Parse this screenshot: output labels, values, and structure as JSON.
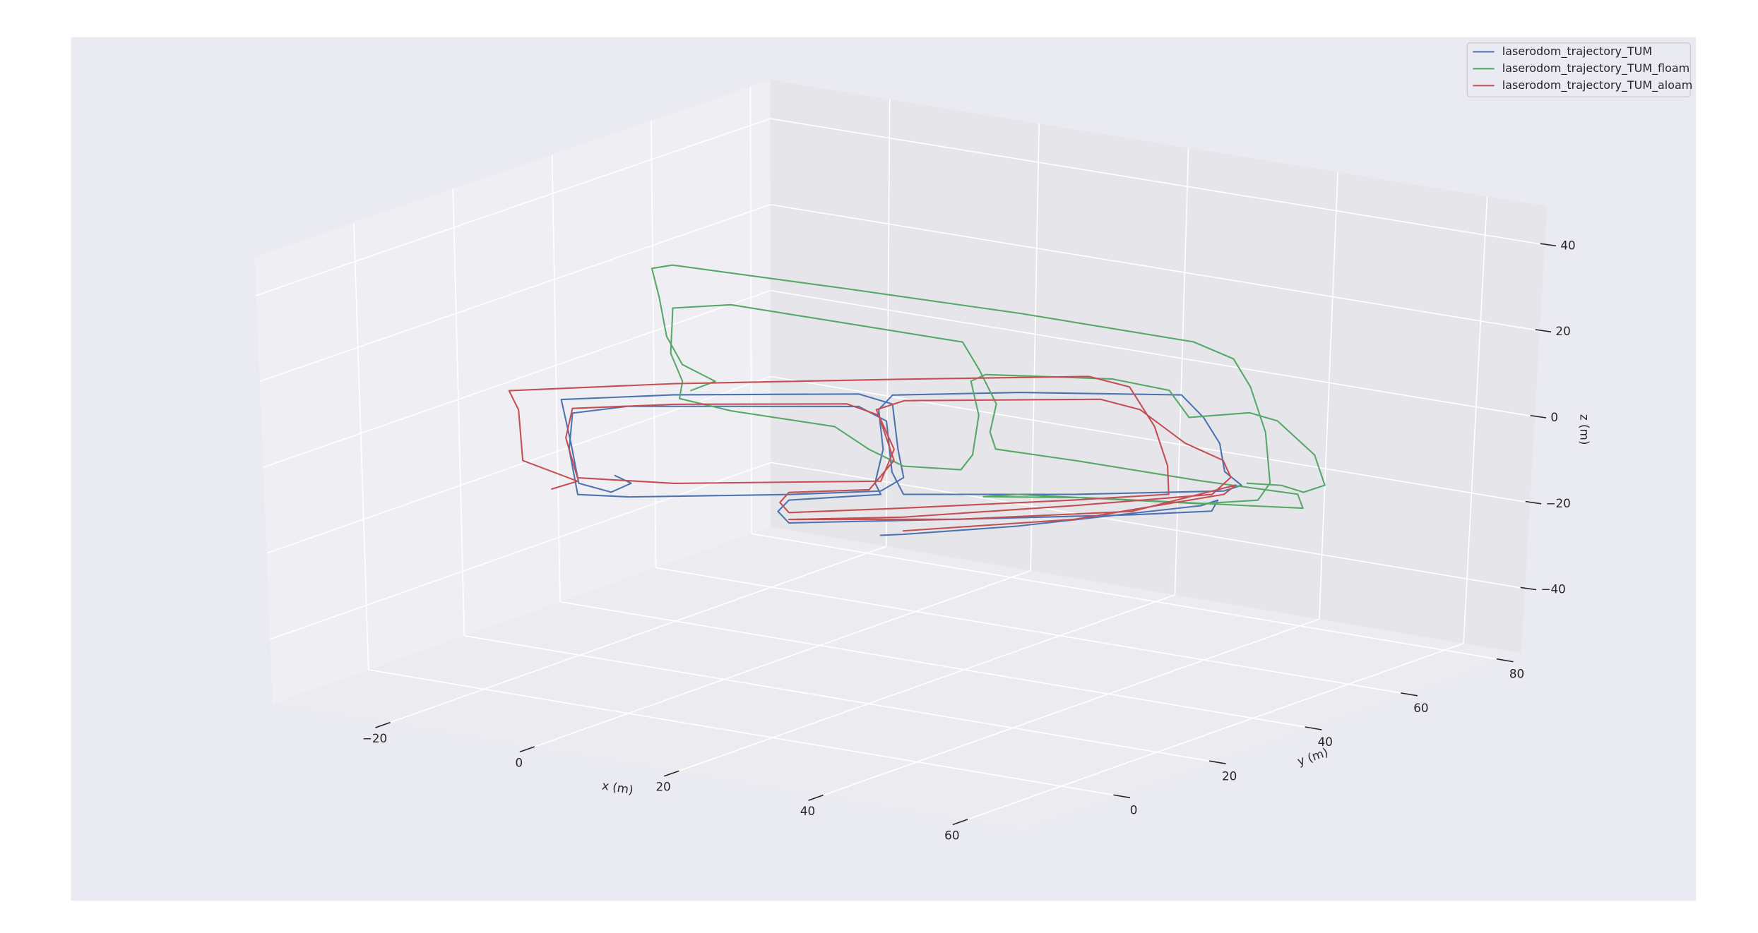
{
  "chart_data": {
    "type": "line3d",
    "xlabel": "x (m)",
    "ylabel": "y (m)",
    "zlabel": "z (m)",
    "xlim": [
      -36,
      68
    ],
    "ylim": [
      -20,
      84
    ],
    "zlim": [
      -55,
      49
    ],
    "xticks": [
      {
        "value": -20,
        "label": "−20"
      },
      0,
      20,
      40,
      60
    ],
    "yticks": [
      0,
      20,
      40,
      60,
      80
    ],
    "zticks": [
      {
        "value": -40,
        "label": "−40"
      },
      {
        "value": -20,
        "label": "−20"
      },
      0,
      20,
      40
    ],
    "grid": true,
    "legend": "upper right",
    "series": [
      {
        "name": "laserodom_trajectory_TUM",
        "color": "#4c72b0",
        "x": [
          -12.1,
          -10.5,
          -12.5,
          -15.8,
          -16.5,
          -17.4,
          -6.1,
          12.4,
          15.8,
          16.4,
          17.0,
          14.7,
          5.4,
          -10.7,
          -15.9,
          -16.7,
          -16.3,
          -10.7,
          12.4,
          15.2,
          15.8,
          17.0,
          34.3,
          49.3,
          51.0,
          49.3,
          48.7,
          47.0,
          44.7,
          28.5,
          15.8,
          14.4,
          14.9,
          14.1,
          14.7,
          5.4,
          4.3,
          5.4,
          22.7,
          40.1,
          48.1,
          48.7,
          47.0,
          28.5,
          17.0,
          14.7
        ],
        "y": [
          16.0,
          16.9,
          15.8,
          14.1,
          13.7,
          13.2,
          19.2,
          29.1,
          30.9,
          31.2,
          31.5,
          30.3,
          25.4,
          16.8,
          14.0,
          13.6,
          13.8,
          16.8,
          29.1,
          30.6,
          30.9,
          31.5,
          40.8,
          48.7,
          49.7,
          48.7,
          48.4,
          47.5,
          46.3,
          37.7,
          30.9,
          30.2,
          30.4,
          30.0,
          30.3,
          25.4,
          24.8,
          25.4,
          34.6,
          43.8,
          48.1,
          48.4,
          47.5,
          37.7,
          31.5,
          30.3
        ],
        "z": [
          -9.4,
          -11.1,
          -13.3,
          -11.5,
          -2.3,
          7.9,
          9.8,
          11.3,
          9.2,
          -1.3,
          -7.8,
          -11.1,
          -12.6,
          -14.3,
          -14.1,
          -3.7,
          4.8,
          6.8,
          8.4,
          5.2,
          -6.6,
          -11.7,
          -10.5,
          -8.6,
          -7.2,
          -4.1,
          2.4,
          8.3,
          13.4,
          12.8,
          11.3,
          7.8,
          -1.4,
          -9.3,
          -11.9,
          -13.9,
          -16.6,
          -19.2,
          -17.1,
          -14.8,
          -13.4,
          -10.8,
          -12.2,
          -18.3,
          -21.0,
          -21.4
        ]
      },
      {
        "name": "laserodom_trajectory_TUM_floam",
        "color": "#55a868",
        "x": [
          -5.9,
          -3.6,
          -6.7,
          -8.2,
          -8.9,
          -9.5,
          -7.6,
          9.0,
          25.6,
          42.1,
          46.0,
          47.7,
          49.3,
          49.9,
          48.8,
          43.3,
          25.6,
          22.3,
          32.2,
          47.7,
          53.2,
          52.6,
          43.3,
          31.1,
          23.4,
          22.8,
          23.4,
          21.7,
          20.1,
          -2.0,
          -7.6,
          -7.8,
          -6.7,
          -7.0,
          -2.0,
          7.9,
          11.2,
          14.5,
          20.1,
          21.2,
          21.7,
          20.9,
          22.3,
          34.4,
          39.9,
          41.9,
          47.7,
          50.4,
          54.1,
          55.2,
          53.2,
          51.0,
          47.7
        ],
        "y": [
          22.4,
          23.9,
          21.9,
          21.0,
          20.6,
          20.1,
          21.4,
          31.7,
          42.1,
          52.4,
          54.8,
          55.9,
          56.9,
          57.3,
          56.6,
          53.1,
          42.1,
          40.0,
          46.2,
          55.9,
          59.3,
          59.0,
          53.1,
          45.5,
          40.7,
          40.4,
          40.7,
          39.7,
          38.6,
          24.8,
          21.4,
          21.2,
          21.9,
          21.7,
          24.8,
          31.0,
          33.1,
          35.2,
          38.6,
          39.3,
          39.7,
          39.2,
          40.0,
          47.6,
          51.1,
          52.3,
          55.9,
          57.6,
          59.9,
          60.6,
          59.3,
          58.0,
          55.9
        ],
        "z": [
          9.6,
          11.8,
          15.6,
          22.1,
          31.3,
          37.9,
          38.7,
          33.8,
          28.6,
          22.6,
          18.8,
          12.3,
          1.8,
          -10.0,
          -14.0,
          -15.0,
          -13.5,
          -14.1,
          -14.0,
          -15.3,
          -15.7,
          -12.5,
          -9.7,
          -5.4,
          -3.0,
          0.9,
          7.5,
          15.3,
          21.8,
          29.7,
          28.7,
          18.2,
          11.7,
          7.7,
          5.0,
          1.7,
          -3.5,
          -7.3,
          -7.9,
          -4.4,
          4.8,
          12.7,
          14.3,
          13.7,
          11.2,
          5.0,
          6.3,
          4.5,
          -3.3,
          -10.3,
          -12.0,
          -10.5,
          -10.1
        ]
      },
      {
        "name": "laserodom_trajectory_TUM_aloam",
        "color": "#c44e52",
        "x": [
          -18.5,
          -15.9,
          -21.4,
          -21.7,
          -22.6,
          -6.1,
          17.0,
          35.4,
          39.5,
          42.1,
          43.5,
          43.7,
          34.3,
          17.0,
          5.4,
          4.5,
          5.4,
          13.5,
          16.0,
          14.4,
          11.2,
          -6.1,
          -16.3,
          -17.0,
          -15.9,
          -6.1,
          14.7,
          16.0,
          14.2,
          17.0,
          36.6,
          40.6,
          45.2,
          49.1,
          49.9,
          48.1,
          34.3,
          17.0,
          5.4,
          22.7,
          40.1,
          50.4,
          49.3,
          34.3,
          17.0
        ],
        "y": [
          12.6,
          14.0,
          11.1,
          10.9,
          10.4,
          19.2,
          31.5,
          41.4,
          43.5,
          44.9,
          45.7,
          45.8,
          40.8,
          31.5,
          25.4,
          24.9,
          25.4,
          29.7,
          31.0,
          30.2,
          28.5,
          19.2,
          13.8,
          13.4,
          14.0,
          19.2,
          30.3,
          31.0,
          30.0,
          31.5,
          42.0,
          44.1,
          46.6,
          48.6,
          49.1,
          48.1,
          40.8,
          31.5,
          25.4,
          34.6,
          43.8,
          49.4,
          48.7,
          40.8,
          31.5
        ],
        "z": [
          -13.0,
          -11.0,
          -6.6,
          5.2,
          9.6,
          12.4,
          15.1,
          17.0,
          14.9,
          5.9,
          -3.2,
          -9.8,
          -11.8,
          -14.9,
          -16.8,
          -14.5,
          -12.1,
          -10.9,
          -3.9,
          6.5,
          8.9,
          7.6,
          5.9,
          -1.0,
          -10.2,
          -10.8,
          -8.8,
          -1.3,
          7.8,
          10.1,
          11.8,
          9.7,
          2.2,
          -1.5,
          -5.4,
          -9.5,
          -13.1,
          -17.0,
          -18.4,
          -17.1,
          -14.0,
          -7.2,
          -9.4,
          -16.3,
          -20.2
        ]
      }
    ]
  }
}
